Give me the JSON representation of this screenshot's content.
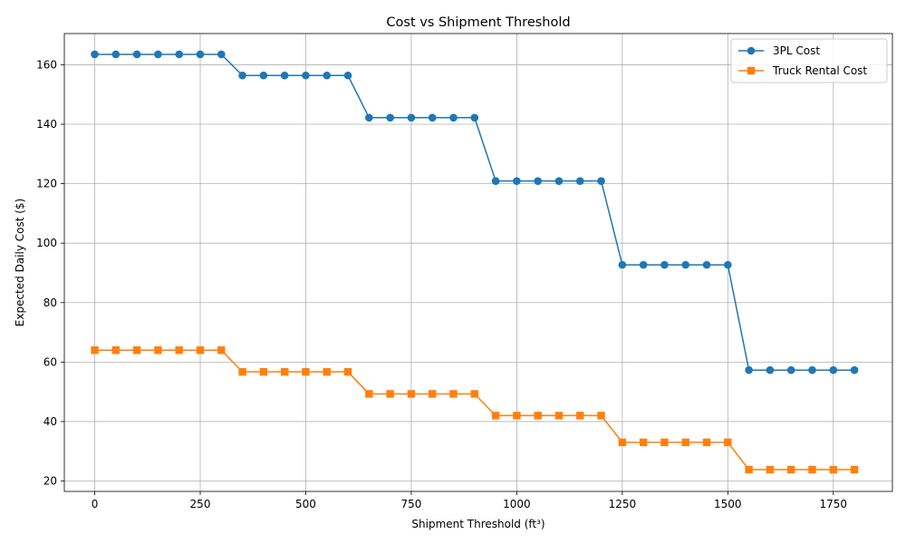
{
  "chart_data": {
    "type": "line",
    "title": "Cost vs Shipment Threshold",
    "xlabel": "Shipment Threshold (ft³)",
    "ylabel": "Expected Daily Cost ($)",
    "xlim": [
      -72,
      1890
    ],
    "ylim": [
      16.5,
      170.5
    ],
    "xticks": [
      0,
      250,
      500,
      750,
      1000,
      1250,
      1500,
      1750
    ],
    "yticks": [
      20,
      40,
      60,
      80,
      100,
      120,
      140,
      160
    ],
    "grid": true,
    "legend_position": "top-right",
    "x": [
      0,
      50,
      100,
      150,
      200,
      250,
      300,
      350,
      400,
      450,
      500,
      550,
      600,
      650,
      700,
      750,
      800,
      850,
      900,
      950,
      1000,
      1050,
      1100,
      1150,
      1200,
      1250,
      1300,
      1350,
      1400,
      1450,
      1500,
      1550,
      1600,
      1650,
      1700,
      1750,
      1800
    ],
    "series": [
      {
        "name": "3PL Cost",
        "color": "#1f77b4",
        "marker": "circle",
        "values": [
          163.5,
          163.5,
          163.5,
          163.5,
          163.5,
          163.5,
          163.5,
          156.4,
          156.4,
          156.4,
          156.4,
          156.4,
          156.4,
          142.2,
          142.2,
          142.2,
          142.2,
          142.2,
          142.2,
          120.9,
          120.9,
          120.9,
          120.9,
          120.9,
          120.9,
          92.7,
          92.7,
          92.7,
          92.7,
          92.7,
          92.7,
          57.3,
          57.3,
          57.3,
          57.3,
          57.3,
          57.3
        ]
      },
      {
        "name": "Truck Rental Cost",
        "color": "#ff7f0e",
        "marker": "square",
        "values": [
          64.0,
          64.0,
          64.0,
          64.0,
          64.0,
          64.0,
          64.0,
          56.7,
          56.7,
          56.7,
          56.7,
          56.7,
          56.7,
          49.3,
          49.3,
          49.3,
          49.3,
          49.3,
          49.3,
          42.0,
          42.0,
          42.0,
          42.0,
          42.0,
          42.0,
          33.0,
          33.0,
          33.0,
          33.0,
          33.0,
          33.0,
          23.8,
          23.8,
          23.8,
          23.8,
          23.8,
          23.8
        ]
      }
    ]
  }
}
